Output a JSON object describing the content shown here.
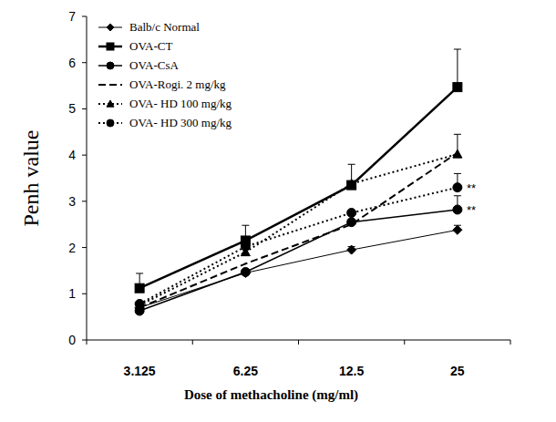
{
  "chart_data": {
    "type": "line",
    "x_label": "Dose of methacholine (mg/ml)",
    "y_label": "Penh value",
    "categories": [
      "3.125",
      "6.25",
      "12.5",
      "25"
    ],
    "ylim": [
      0,
      7
    ],
    "yticks": [
      0,
      1,
      2,
      3,
      4,
      5,
      6,
      7
    ],
    "grid": false,
    "legend": "top-left",
    "series": [
      {
        "name": "Balb/c Normal",
        "color": "#000000",
        "marker": "diamond",
        "line_style": "solid",
        "values": [
          0.7,
          1.45,
          1.95,
          2.38
        ],
        "errors": [
          null,
          null,
          0.07,
          0.1
        ]
      },
      {
        "name": "OVA-CT",
        "color": "#000000",
        "marker": "square",
        "line_style": "solid",
        "values": [
          1.12,
          2.15,
          3.35,
          5.47
        ],
        "errors": [
          0.32,
          0.33,
          0.45,
          0.82
        ]
      },
      {
        "name": "OVA-CsA",
        "color": "#000000",
        "marker": "circle",
        "line_style": "solid",
        "values": [
          0.63,
          1.47,
          2.55,
          2.82
        ],
        "errors": [
          null,
          null,
          null,
          0.3
        ]
      },
      {
        "name": "OVA-Rogi. 2 mg/kg",
        "color": "#000000",
        "marker": "none",
        "line_style": "dashed",
        "values": [
          0.7,
          1.65,
          2.5,
          4.05
        ],
        "errors": [
          null,
          null,
          null,
          0.4
        ]
      },
      {
        "name": "OVA- HD 100 mg/kg",
        "color": "#000000",
        "marker": "triangle",
        "line_style": "dotted",
        "values": [
          0.75,
          1.9,
          3.38,
          4.02
        ],
        "errors": [
          null,
          null,
          null,
          null
        ]
      },
      {
        "name": "OVA- HD 300 mg/kg",
        "color": "#000000",
        "marker": "circle",
        "line_style": "dotted",
        "values": [
          0.78,
          2.02,
          2.75,
          3.3
        ],
        "errors": [
          null,
          null,
          null,
          0.3
        ]
      }
    ],
    "annotations": [
      {
        "text": "**",
        "series": "OVA- HD 300 mg/kg",
        "category": "25"
      },
      {
        "text": "**",
        "series": "OVA-CsA",
        "category": "25"
      }
    ]
  }
}
